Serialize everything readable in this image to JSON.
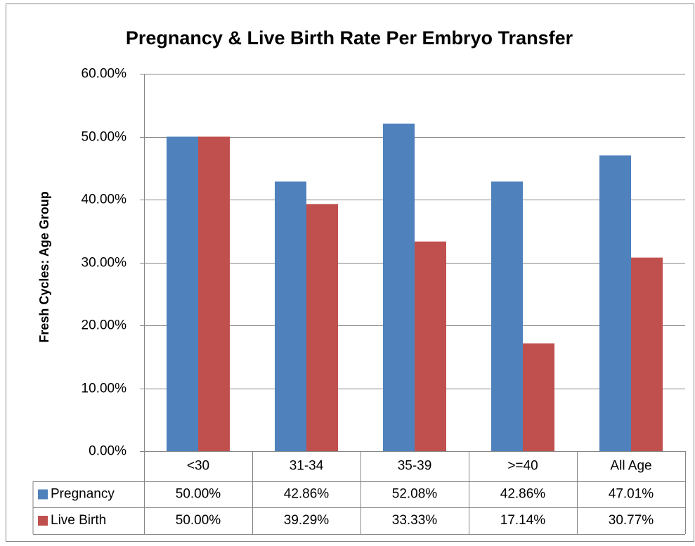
{
  "chart_data": {
    "type": "bar",
    "title": "Pregnancy & Live Birth Rate Per Embryo Transfer",
    "y_label": "Fresh Cycles: Age Group",
    "categories": [
      "<30",
      "31-34",
      "35-39",
      ">=40",
      "All Age"
    ],
    "series": [
      {
        "name": "Pregnancy",
        "color": "#4f81bd",
        "values": [
          50,
          42.86,
          52.08,
          42.86,
          47.01
        ],
        "value_labels": [
          "50.00%",
          "42.86%",
          "52.08%",
          "42.86%",
          "47.01%"
        ]
      },
      {
        "name": "Live Birth",
        "color": "#c0504d",
        "values": [
          50,
          39.29,
          33.33,
          17.14,
          30.77
        ],
        "value_labels": [
          "50.00%",
          "39.29%",
          "33.33%",
          "17.14%",
          "30.77%"
        ]
      }
    ],
    "ylim": [
      0,
      60
    ],
    "yticks": [
      {
        "value": 0,
        "label": "0.00%"
      },
      {
        "value": 10,
        "label": "10.00%"
      },
      {
        "value": 20,
        "label": "20.00%"
      },
      {
        "value": 30,
        "label": "30.00%"
      },
      {
        "value": 40,
        "label": "40.00%"
      },
      {
        "value": 50,
        "label": "50.00%"
      },
      {
        "value": 60,
        "label": "60.00%"
      }
    ],
    "grid": true,
    "data_table": true
  }
}
